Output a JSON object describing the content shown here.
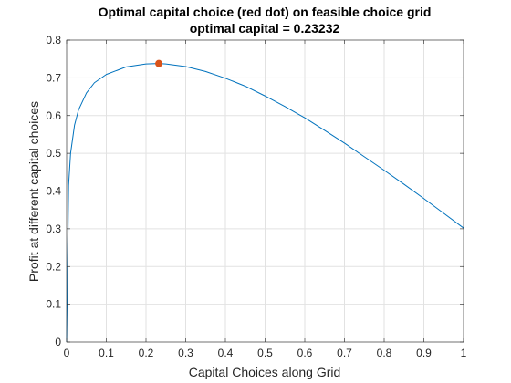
{
  "chart_data": {
    "type": "line",
    "title": "Optimal capital choice (red dot) on feasible choice grid",
    "subtitle": "optimal capital = 0.23232",
    "xlabel": "Capital Choices along Grid",
    "ylabel": "Profit at different capital choices",
    "xlim": [
      0,
      1
    ],
    "ylim": [
      0,
      0.8
    ],
    "xticks": [
      "0",
      "0.1",
      "0.2",
      "0.3",
      "0.4",
      "0.5",
      "0.6",
      "0.7",
      "0.8",
      "0.9",
      "1"
    ],
    "yticks": [
      "0",
      "0.1",
      "0.2",
      "0.3",
      "0.4",
      "0.5",
      "0.6",
      "0.7",
      "0.8"
    ],
    "grid": true,
    "series": [
      {
        "color": "#0072BD",
        "x": [
          0,
          0.005,
          0.01,
          0.02,
          0.03,
          0.05,
          0.07,
          0.1,
          0.15,
          0.2,
          0.23232,
          0.25,
          0.3,
          0.35,
          0.4,
          0.45,
          0.5,
          0.55,
          0.6,
          0.65,
          0.7,
          0.75,
          0.8,
          0.85,
          0.9,
          0.95,
          1.0
        ],
        "y": [
          0,
          0.415,
          0.5,
          0.575,
          0.615,
          0.66,
          0.687,
          0.709,
          0.729,
          0.737,
          0.738,
          0.737,
          0.73,
          0.717,
          0.699,
          0.678,
          0.652,
          0.624,
          0.594,
          0.561,
          0.527,
          0.491,
          0.455,
          0.418,
          0.38,
          0.341,
          0.302
        ]
      }
    ],
    "highlight": {
      "x": 0.23232,
      "y": 0.738,
      "color": "#D95319"
    }
  }
}
